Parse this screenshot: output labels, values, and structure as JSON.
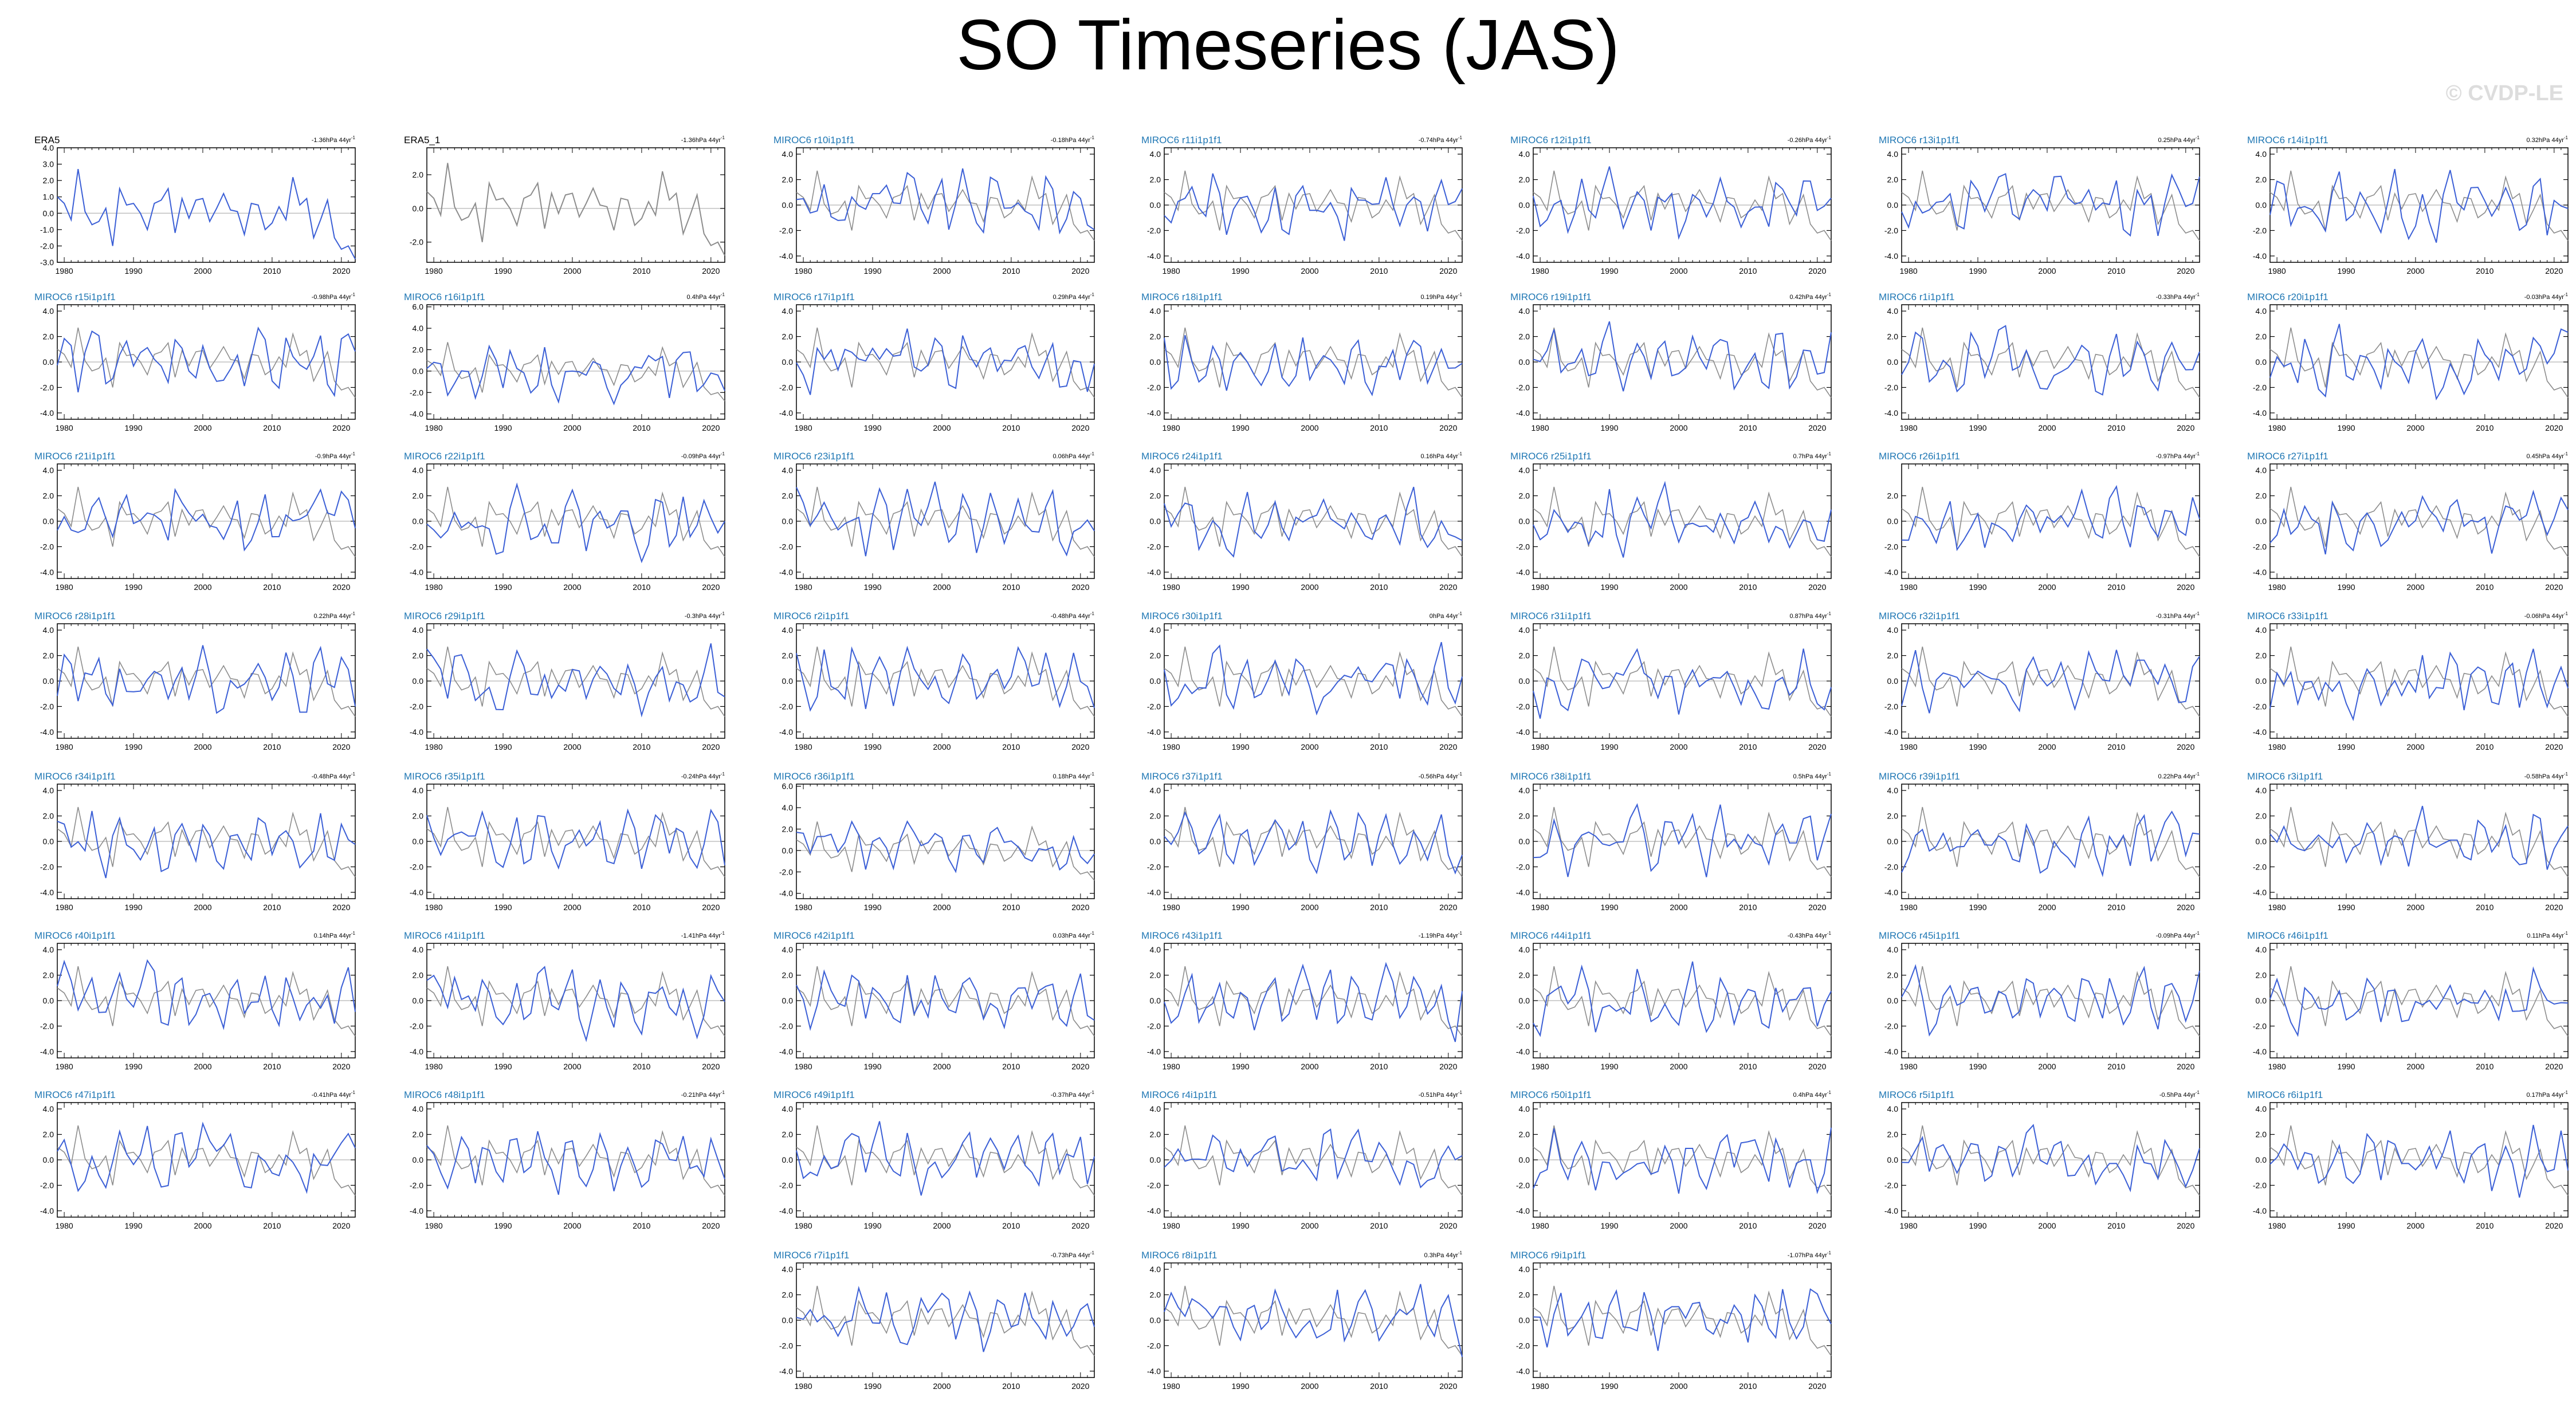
{
  "title": "SO Timeseries (JAS)",
  "watermark": "© CVDP-LE",
  "colors": {
    "ensemble": "#1f77b4",
    "model_line": "#3b5fd6",
    "obs_line": "#000000",
    "obs_overlay": "#8c8c8c",
    "zero_line": "#b5b5b5"
  },
  "chart_data": {
    "type": "line",
    "x_range": [
      1979,
      2022
    ],
    "x_ticks": [
      1980,
      1990,
      2000,
      2010,
      2020
    ],
    "panels": [
      {
        "label": "ERA5",
        "trend": "-1.36hPa 44yr",
        "ylim": [
          -3,
          4
        ],
        "yticks": [
          "4.0",
          "3.0",
          "2.0",
          "1.0",
          "0.0",
          "-1.0",
          "-2.0",
          "-3.0"
        ],
        "kind": "obs"
      },
      {
        "label": "ERA5_1",
        "trend": "-1.36hPa 44yr",
        "ylim": [
          -3.2,
          3.6
        ],
        "yticks": [
          "2.0",
          "0.0",
          "-2.0"
        ],
        "kind": "obs"
      },
      {
        "label": "MIROC6 r10i1p1f1",
        "trend": "-0.18hPa 44yr",
        "ylim": [
          -4.5,
          4.5
        ],
        "yticks": [
          "4.0",
          "2.0",
          "0.0",
          "-2.0",
          "-4.0"
        ],
        "kind": "model"
      },
      {
        "label": "MIROC6 r11i1p1f1",
        "trend": "-0.74hPa 44yr",
        "ylim": [
          -4.5,
          4.5
        ],
        "yticks": [
          "4.0",
          "2.0",
          "0.0",
          "-2.0",
          "-4.0"
        ],
        "kind": "model"
      },
      {
        "label": "MIROC6 r12i1p1f1",
        "trend": "-0.26hPa 44yr",
        "ylim": [
          -4.5,
          4.5
        ],
        "yticks": [
          "4.0",
          "2.0",
          "0.0",
          "-2.0",
          "-4.0"
        ],
        "kind": "model"
      },
      {
        "label": "MIROC6 r13i1p1f1",
        "trend": "0.25hPa 44yr",
        "ylim": [
          -4.5,
          4.5
        ],
        "yticks": [
          "4.0",
          "2.0",
          "0.0",
          "-2.0",
          "-4.0"
        ],
        "kind": "model"
      },
      {
        "label": "MIROC6 r14i1p1f1",
        "trend": "0.32hPa 44yr",
        "ylim": [
          -4.5,
          4.5
        ],
        "yticks": [
          "4.0",
          "2.0",
          "0.0",
          "-2.0",
          "-4.0"
        ],
        "kind": "model"
      },
      {
        "label": "MIROC6 r15i1p1f1",
        "trend": "-0.98hPa 44yr",
        "ylim": [
          -4.5,
          4.5
        ],
        "yticks": [
          "4.0",
          "2.0",
          "0.0",
          "-2.0",
          "-4.0"
        ],
        "kind": "model"
      },
      {
        "label": "MIROC6 r16i1p1f1",
        "trend": "0.4hPa 44yr",
        "ylim": [
          -4.5,
          6.2
        ],
        "yticks": [
          "6.0",
          "4.0",
          "2.0",
          "0.0",
          "-2.0",
          "-4.0"
        ],
        "kind": "model"
      },
      {
        "label": "MIROC6 r17i1p1f1",
        "trend": "0.29hPa 44yr",
        "ylim": [
          -4.5,
          4.5
        ],
        "yticks": [
          "4.0",
          "2.0",
          "0.0",
          "-2.0",
          "-4.0"
        ],
        "kind": "model"
      },
      {
        "label": "MIROC6 r18i1p1f1",
        "trend": "0.19hPa 44yr",
        "ylim": [
          -4.5,
          4.5
        ],
        "yticks": [
          "4.0",
          "2.0",
          "0.0",
          "-2.0",
          "-4.0"
        ],
        "kind": "model"
      },
      {
        "label": "MIROC6 r19i1p1f1",
        "trend": "0.42hPa 44yr",
        "ylim": [
          -4.5,
          4.5
        ],
        "yticks": [
          "4.0",
          "2.0",
          "0.0",
          "-2.0",
          "-4.0"
        ],
        "kind": "model"
      },
      {
        "label": "MIROC6 r1i1p1f1",
        "trend": "-0.33hPa 44yr",
        "ylim": [
          -4.5,
          4.5
        ],
        "yticks": [
          "4.0",
          "2.0",
          "0.0",
          "-2.0",
          "-4.0"
        ],
        "kind": "model"
      },
      {
        "label": "MIROC6 r20i1p1f1",
        "trend": "-0.03hPa 44yr",
        "ylim": [
          -4.5,
          4.5
        ],
        "yticks": [
          "4.0",
          "2.0",
          "0.0",
          "-2.0",
          "-4.0"
        ],
        "kind": "model"
      },
      {
        "label": "MIROC6 r21i1p1f1",
        "trend": "-0.9hPa 44yr",
        "ylim": [
          -4.5,
          4.5
        ],
        "yticks": [
          "4.0",
          "2.0",
          "0.0",
          "-2.0",
          "-4.0"
        ],
        "kind": "model"
      },
      {
        "label": "MIROC6 r22i1p1f1",
        "trend": "-0.09hPa 44yr",
        "ylim": [
          -4.5,
          4.5
        ],
        "yticks": [
          "4.0",
          "2.0",
          "0.0",
          "-2.0",
          "-4.0"
        ],
        "kind": "model"
      },
      {
        "label": "MIROC6 r23i1p1f1",
        "trend": "0.06hPa 44yr",
        "ylim": [
          -4.5,
          4.5
        ],
        "yticks": [
          "4.0",
          "2.0",
          "0.0",
          "-2.0",
          "-4.0"
        ],
        "kind": "model"
      },
      {
        "label": "MIROC6 r24i1p1f1",
        "trend": "0.16hPa 44yr",
        "ylim": [
          -4.5,
          4.5
        ],
        "yticks": [
          "4.0",
          "2.0",
          "0.0",
          "-2.0",
          "-4.0"
        ],
        "kind": "model"
      },
      {
        "label": "MIROC6 r25i1p1f1",
        "trend": "0.7hPa 44yr",
        "ylim": [
          -4.5,
          4.5
        ],
        "yticks": [
          "4.0",
          "2.0",
          "0.0",
          "-2.0",
          "-4.0"
        ],
        "kind": "model"
      },
      {
        "label": "MIROC6 r26i1p1f1",
        "trend": "-0.97hPa 44yr",
        "ylim": [
          -4.5,
          4.5
        ],
        "yticks": [
          "2.0",
          "0.0",
          "-2.0",
          "-4.0"
        ],
        "kind": "model"
      },
      {
        "label": "MIROC6 r27i1p1f1",
        "trend": "0.45hPa 44yr",
        "ylim": [
          -4.5,
          4.5
        ],
        "yticks": [
          "4.0",
          "2.0",
          "0.0",
          "-2.0",
          "-4.0"
        ],
        "kind": "model"
      },
      {
        "label": "MIROC6 r28i1p1f1",
        "trend": "0.22hPa 44yr",
        "ylim": [
          -4.5,
          4.5
        ],
        "yticks": [
          "4.0",
          "2.0",
          "0.0",
          "-2.0",
          "-4.0"
        ],
        "kind": "model"
      },
      {
        "label": "MIROC6 r29i1p1f1",
        "trend": "-0.3hPa 44yr",
        "ylim": [
          -4.5,
          4.5
        ],
        "yticks": [
          "4.0",
          "2.0",
          "0.0",
          "-2.0",
          "-4.0"
        ],
        "kind": "model"
      },
      {
        "label": "MIROC6 r2i1p1f1",
        "trend": "-0.48hPa 44yr",
        "ylim": [
          -4.5,
          4.5
        ],
        "yticks": [
          "4.0",
          "2.0",
          "0.0",
          "-2.0",
          "-4.0"
        ],
        "kind": "model"
      },
      {
        "label": "MIROC6 r30i1p1f1",
        "trend": "0hPa 44yr",
        "ylim": [
          -4.5,
          4.5
        ],
        "yticks": [
          "4.0",
          "2.0",
          "0.0",
          "-2.0",
          "-4.0"
        ],
        "kind": "model"
      },
      {
        "label": "MIROC6 r31i1p1f1",
        "trend": "0.87hPa 44yr",
        "ylim": [
          -4.5,
          4.5
        ],
        "yticks": [
          "4.0",
          "2.0",
          "0.0",
          "-2.0",
          "-4.0"
        ],
        "kind": "model"
      },
      {
        "label": "MIROC6 r32i1p1f1",
        "trend": "-0.31hPa 44yr",
        "ylim": [
          -4.5,
          4.5
        ],
        "yticks": [
          "4.0",
          "2.0",
          "0.0",
          "-2.0",
          "-4.0"
        ],
        "kind": "model"
      },
      {
        "label": "MIROC6 r33i1p1f1",
        "trend": "-0.06hPa 44yr",
        "ylim": [
          -4.5,
          4.5
        ],
        "yticks": [
          "4.0",
          "2.0",
          "0.0",
          "-2.0",
          "-4.0"
        ],
        "kind": "model"
      },
      {
        "label": "MIROC6 r34i1p1f1",
        "trend": "-0.48hPa 44yr",
        "ylim": [
          -4.5,
          4.5
        ],
        "yticks": [
          "4.0",
          "2.0",
          "0.0",
          "-2.0",
          "-4.0"
        ],
        "kind": "model"
      },
      {
        "label": "MIROC6 r35i1p1f1",
        "trend": "-0.24hPa 44yr",
        "ylim": [
          -4.5,
          4.5
        ],
        "yticks": [
          "4.0",
          "2.0",
          "0.0",
          "-2.0",
          "-4.0"
        ],
        "kind": "model"
      },
      {
        "label": "MIROC6 r36i1p1f1",
        "trend": "0.18hPa 44yr",
        "ylim": [
          -4.5,
          6.2
        ],
        "yticks": [
          "6.0",
          "4.0",
          "2.0",
          "0.0",
          "-2.0",
          "-4.0"
        ],
        "kind": "model"
      },
      {
        "label": "MIROC6 r37i1p1f1",
        "trend": "-0.56hPa 44yr",
        "ylim": [
          -4.5,
          4.5
        ],
        "yticks": [
          "4.0",
          "2.0",
          "0.0",
          "-2.0",
          "-4.0"
        ],
        "kind": "model"
      },
      {
        "label": "MIROC6 r38i1p1f1",
        "trend": "0.5hPa 44yr",
        "ylim": [
          -4.5,
          4.5
        ],
        "yticks": [
          "4.0",
          "2.0",
          "0.0",
          "-2.0",
          "-4.0"
        ],
        "kind": "model"
      },
      {
        "label": "MIROC6 r39i1p1f1",
        "trend": "0.22hPa 44yr",
        "ylim": [
          -4.5,
          4.5
        ],
        "yticks": [
          "4.0",
          "2.0",
          "0.0",
          "-2.0",
          "-4.0"
        ],
        "kind": "model"
      },
      {
        "label": "MIROC6 r3i1p1f1",
        "trend": "-0.58hPa 44yr",
        "ylim": [
          -4.5,
          4.5
        ],
        "yticks": [
          "4.0",
          "2.0",
          "0.0",
          "-2.0",
          "-4.0"
        ],
        "kind": "model"
      },
      {
        "label": "MIROC6 r40i1p1f1",
        "trend": "0.14hPa 44yr",
        "ylim": [
          -4.5,
          4.5
        ],
        "yticks": [
          "4.0",
          "2.0",
          "0.0",
          "-2.0",
          "-4.0"
        ],
        "kind": "model"
      },
      {
        "label": "MIROC6 r41i1p1f1",
        "trend": "-1.41hPa 44yr",
        "ylim": [
          -4.5,
          4.5
        ],
        "yticks": [
          "4.0",
          "2.0",
          "0.0",
          "-2.0",
          "-4.0"
        ],
        "kind": "model"
      },
      {
        "label": "MIROC6 r42i1p1f1",
        "trend": "0.03hPa 44yr",
        "ylim": [
          -4.5,
          4.5
        ],
        "yticks": [
          "4.0",
          "2.0",
          "0.0",
          "-2.0",
          "-4.0"
        ],
        "kind": "model"
      },
      {
        "label": "MIROC6 r43i1p1f1",
        "trend": "-1.19hPa 44yr",
        "ylim": [
          -4.5,
          4.5
        ],
        "yticks": [
          "4.0",
          "2.0",
          "0.0",
          "-2.0",
          "-4.0"
        ],
        "kind": "model"
      },
      {
        "label": "MIROC6 r44i1p1f1",
        "trend": "-0.43hPa 44yr",
        "ylim": [
          -4.5,
          4.5
        ],
        "yticks": [
          "4.0",
          "2.0",
          "0.0",
          "-2.0",
          "-4.0"
        ],
        "kind": "model"
      },
      {
        "label": "MIROC6 r45i1p1f1",
        "trend": "-0.09hPa 44yr",
        "ylim": [
          -4.5,
          4.5
        ],
        "yticks": [
          "4.0",
          "2.0",
          "0.0",
          "-2.0",
          "-4.0"
        ],
        "kind": "model"
      },
      {
        "label": "MIROC6 r46i1p1f1",
        "trend": "0.11hPa 44yr",
        "ylim": [
          -4.5,
          4.5
        ],
        "yticks": [
          "4.0",
          "2.0",
          "0.0",
          "-2.0",
          "-4.0"
        ],
        "kind": "model"
      },
      {
        "label": "MIROC6 r47i1p1f1",
        "trend": "-0.41hPa 44yr",
        "ylim": [
          -4.5,
          4.5
        ],
        "yticks": [
          "4.0",
          "2.0",
          "0.0",
          "-2.0",
          "-4.0"
        ],
        "kind": "model"
      },
      {
        "label": "MIROC6 r48i1p1f1",
        "trend": "-0.21hPa 44yr",
        "ylim": [
          -4.5,
          4.5
        ],
        "yticks": [
          "4.0",
          "2.0",
          "0.0",
          "-2.0",
          "-4.0"
        ],
        "kind": "model"
      },
      {
        "label": "MIROC6 r49i1p1f1",
        "trend": "-0.37hPa 44yr",
        "ylim": [
          -4.5,
          4.5
        ],
        "yticks": [
          "4.0",
          "2.0",
          "0.0",
          "-2.0",
          "-4.0"
        ],
        "kind": "model"
      },
      {
        "label": "MIROC6 r4i1p1f1",
        "trend": "-0.51hPa 44yr",
        "ylim": [
          -4.5,
          4.5
        ],
        "yticks": [
          "4.0",
          "2.0",
          "0.0",
          "-2.0",
          "-4.0"
        ],
        "kind": "model"
      },
      {
        "label": "MIROC6 r50i1p1f1",
        "trend": "0.4hPa 44yr",
        "ylim": [
          -4.5,
          4.5
        ],
        "yticks": [
          "4.0",
          "2.0",
          "0.0",
          "-2.0",
          "-4.0"
        ],
        "kind": "model"
      },
      {
        "label": "MIROC6 r5i1p1f1",
        "trend": "-0.5hPa 44yr",
        "ylim": [
          -4.5,
          4.5
        ],
        "yticks": [
          "4.0",
          "2.0",
          "0.0",
          "-2.0",
          "-4.0"
        ],
        "kind": "model"
      },
      {
        "label": "MIROC6 r6i1p1f1",
        "trend": "0.17hPa 44yr",
        "ylim": [
          -4.5,
          4.5
        ],
        "yticks": [
          "4.0",
          "2.0",
          "0.0",
          "-2.0",
          "-4.0"
        ],
        "kind": "model"
      },
      {
        "label": "MIROC6 r7i1p1f1",
        "trend": "-0.73hPa 44yr",
        "ylim": [
          -4.5,
          4.5
        ],
        "yticks": [
          "4.0",
          "2.0",
          "0.0",
          "-2.0",
          "-4.0"
        ],
        "kind": "model"
      },
      {
        "label": "MIROC6 r8i1p1f1",
        "trend": "0.3hPa 44yr",
        "ylim": [
          -4.5,
          4.5
        ],
        "yticks": [
          "4.0",
          "2.0",
          "0.0",
          "-2.0",
          "-4.0"
        ],
        "kind": "model"
      },
      {
        "label": "MIROC6 r9i1p1f1",
        "trend": "-1.07hPa 44yr",
        "ylim": [
          -4.5,
          4.5
        ],
        "yticks": [
          "4.0",
          "2.0",
          "0.0",
          "-2.0",
          "-4.0"
        ],
        "kind": "model"
      }
    ],
    "obs_series": {
      "x": [
        1979,
        1980,
        1981,
        1982,
        1983,
        1984,
        1985,
        1986,
        1987,
        1988,
        1989,
        1990,
        1991,
        1992,
        1993,
        1994,
        1995,
        1996,
        1997,
        1998,
        1999,
        2000,
        2001,
        2002,
        2003,
        2004,
        2005,
        2006,
        2007,
        2008,
        2009,
        2010,
        2011,
        2012,
        2013,
        2014,
        2015,
        2016,
        2017,
        2018,
        2019,
        2020,
        2021,
        2022
      ],
      "y": [
        1.0,
        0.6,
        -0.4,
        2.7,
        0.1,
        -0.7,
        -0.5,
        0.3,
        -2.0,
        1.5,
        0.5,
        0.6,
        0.0,
        -1.0,
        0.6,
        0.8,
        1.5,
        -1.2,
        0.9,
        -0.3,
        0.8,
        0.9,
        -0.5,
        0.3,
        1.2,
        0.2,
        0.1,
        -1.3,
        0.6,
        0.5,
        -1.0,
        -0.6,
        0.4,
        -0.4,
        2.2,
        0.5,
        0.9,
        -1.5,
        -0.4,
        0.8,
        -1.5,
        -2.2,
        -2.0,
        -2.8
      ]
    }
  }
}
